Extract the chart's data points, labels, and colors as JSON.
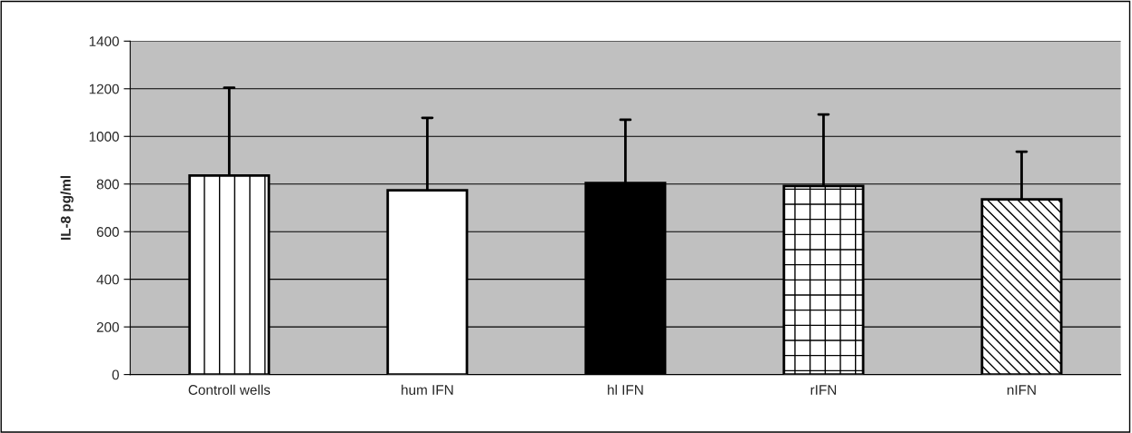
{
  "chart_data": {
    "type": "bar",
    "ylabel": "IL-8 pg/ml",
    "categories": [
      "Controll wells",
      "hum IFN",
      "hl IFN",
      "rIFN",
      "nIFN"
    ],
    "values": [
      836,
      774,
      804,
      792,
      736
    ],
    "colors": [
      "#ffffff",
      "#ffffff",
      "#000000",
      "#ffffff",
      "#ffffff"
    ],
    "errors": [
      [
        836,
        1204
      ],
      [
        774,
        1078
      ],
      [
        804,
        1070
      ],
      [
        792,
        1092
      ],
      [
        736,
        936
      ]
    ],
    "ylim": [
      0,
      1400
    ],
    "yticks": [
      0,
      200,
      400,
      600,
      800,
      1000,
      1200,
      1400
    ],
    "grid": "y"
  }
}
